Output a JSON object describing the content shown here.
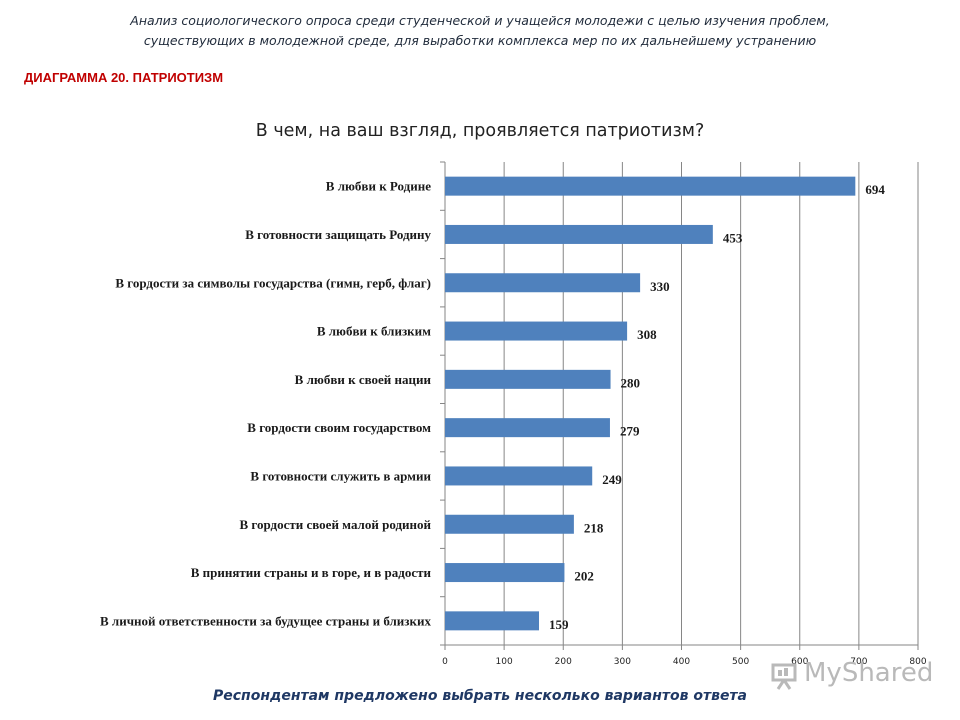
{
  "header": {
    "line1": "Анализ социологического опроса среди студенческой и учащейся молодежи с целью изучения проблем,",
    "line2": "существующих в молодежной среде, для выработки комплекса мер по их дальнейшему  устранению"
  },
  "diagram_label": "ДИАГРАММА 20. ПАТРИОТИЗМ",
  "footer_note": "Респондентам предложено выбрать несколько вариантов ответа",
  "watermark": {
    "text": "MyShared",
    "icon": "slide-presenter-icon"
  },
  "colors": {
    "bar": "#4f81bd",
    "grid": "#868686",
    "diagram_label": "#c00000",
    "footer_note": "#1f3864"
  },
  "chart_data": {
    "type": "bar",
    "orientation": "horizontal",
    "title": "В чем, на ваш взгляд,  проявляется патриотизм?",
    "categories": [
      "В любви к Родине",
      "В готовности защищать Родину",
      "В гордости за символы государства (гимн, герб, флаг)",
      "В любви к близким",
      "В любви к своей нации",
      "В гордости своим государством",
      "В готовности служить в армии",
      "В гордости своей малой родиной",
      "В принятии страны и в горе, и в радости",
      "В личной ответственности за будущее страны и близких"
    ],
    "values": [
      694,
      453,
      330,
      308,
      280,
      279,
      249,
      218,
      202,
      159
    ],
    "xlim": [
      0,
      800
    ],
    "xticks": [
      "0",
      "100",
      "200",
      "300",
      "400",
      "500",
      "600",
      "700",
      "800"
    ],
    "xlabel": "",
    "ylabel": "",
    "grid": "vertical",
    "legend": "none",
    "data_labels": true
  }
}
